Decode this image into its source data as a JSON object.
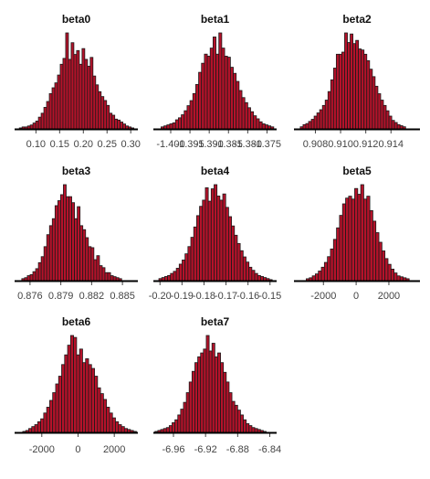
{
  "colors": {
    "bar_fill": "#b5122a",
    "bar_stroke": "#1a1a1a",
    "axis": "#000000",
    "tick_text": "#444444"
  },
  "chart_data": [
    {
      "type": "bar",
      "subtype": "histogram",
      "title": "beta0",
      "xlim": [
        0.055,
        0.315
      ],
      "ticks": [
        {
          "v": 0.1,
          "label": "0.10"
        },
        {
          "v": 0.15,
          "label": "0.15"
        },
        {
          "v": 0.2,
          "label": "0.20"
        },
        {
          "v": 0.25,
          "label": "0.25"
        },
        {
          "v": 0.3,
          "label": "0.30"
        }
      ],
      "bin_start": 0.065,
      "bin_width": 0.00575,
      "counts": [
        1,
        2,
        2,
        3,
        4,
        6,
        8,
        12,
        16,
        22,
        28,
        36,
        42,
        47,
        55,
        66,
        72,
        98,
        71,
        88,
        76,
        80,
        66,
        82,
        71,
        64,
        73,
        54,
        45,
        38,
        33,
        29,
        24,
        16,
        14,
        10,
        9,
        7,
        5,
        3,
        2,
        1
      ]
    },
    {
      "type": "bar",
      "subtype": "histogram",
      "title": "beta1",
      "xlim": [
        -1.4045,
        -1.3725
      ],
      "ticks": [
        {
          "v": -1.4,
          "label": "-1.400"
        },
        {
          "v": -1.395,
          "label": "-1.395"
        },
        {
          "v": -1.39,
          "label": "-1.390"
        },
        {
          "v": -1.385,
          "label": "-1.385"
        },
        {
          "v": -1.38,
          "label": "-1.380"
        },
        {
          "v": -1.375,
          "label": "-1.375"
        }
      ],
      "bin_start": -1.4025,
      "bin_width": 0.00075,
      "counts": [
        2,
        3,
        4,
        5,
        6,
        9,
        11,
        14,
        18,
        23,
        28,
        35,
        44,
        56,
        65,
        74,
        72,
        80,
        91,
        74,
        95,
        80,
        72,
        71,
        61,
        55,
        47,
        38,
        31,
        26,
        21,
        17,
        13,
        10,
        7,
        5,
        4,
        3,
        2
      ]
    },
    {
      "type": "bar",
      "subtype": "histogram",
      "title": "beta2",
      "xlim": [
        0.9063,
        0.9163
      ],
      "ticks": [
        {
          "v": 0.908,
          "label": "0.908"
        },
        {
          "v": 0.91,
          "label": "0.910"
        },
        {
          "v": 0.912,
          "label": "0.912"
        },
        {
          "v": 0.914,
          "label": "0.914"
        }
      ],
      "bin_start": 0.9068,
      "bin_width": 0.00022,
      "counts": [
        2,
        4,
        5,
        7,
        9,
        12,
        15,
        18,
        22,
        27,
        35,
        46,
        57,
        70,
        70,
        72,
        90,
        81,
        89,
        80,
        83,
        75,
        74,
        70,
        64,
        56,
        49,
        40,
        33,
        27,
        22,
        17,
        12,
        8,
        6,
        4,
        3,
        2
      ]
    },
    {
      "type": "bar",
      "subtype": "histogram",
      "title": "beta3",
      "xlim": [
        0.8745,
        0.8865
      ],
      "ticks": [
        {
          "v": 0.876,
          "label": "0.876"
        },
        {
          "v": 0.879,
          "label": "0.879"
        },
        {
          "v": 0.882,
          "label": "0.882"
        },
        {
          "v": 0.885,
          "label": "0.885"
        }
      ],
      "bin_start": 0.8752,
      "bin_width": 0.00027,
      "counts": [
        2,
        3,
        5,
        6,
        9,
        12,
        18,
        24,
        34,
        46,
        55,
        62,
        75,
        80,
        86,
        96,
        84,
        84,
        78,
        62,
        74,
        55,
        51,
        43,
        34,
        33,
        21,
        25,
        15,
        13,
        8,
        8,
        5,
        4,
        3,
        2
      ]
    },
    {
      "type": "bar",
      "subtype": "histogram",
      "title": "beta4",
      "xlim": [
        -0.203,
        -0.147
      ],
      "ticks": [
        {
          "v": -0.2,
          "label": "-0.20"
        },
        {
          "v": -0.19,
          "label": "-0.19"
        },
        {
          "v": -0.18,
          "label": "-0.18"
        },
        {
          "v": -0.17,
          "label": "-0.17"
        },
        {
          "v": -0.16,
          "label": "-0.16"
        },
        {
          "v": -0.15,
          "label": "-0.15"
        }
      ],
      "bin_start": -0.2005,
      "bin_width": 0.00132,
      "counts": [
        2,
        3,
        4,
        5,
        7,
        9,
        12,
        16,
        20,
        26,
        33,
        42,
        52,
        63,
        72,
        78,
        90,
        77,
        89,
        93,
        82,
        78,
        84,
        71,
        62,
        53,
        44,
        36,
        29,
        23,
        18,
        13,
        10,
        7,
        5,
        4,
        3,
        2,
        1
      ]
    },
    {
      "type": "bar",
      "subtype": "histogram",
      "title": "beta5",
      "xlim": [
        -3800,
        3900
      ],
      "ticks": [
        {
          "v": -2000,
          "label": "-2000"
        },
        {
          "v": 0,
          "label": "0"
        },
        {
          "v": 2000,
          "label": "2000"
        }
      ],
      "bin_start": -3050,
      "bin_width": 185,
      "counts": [
        2,
        3,
        5,
        7,
        10,
        14,
        19,
        25,
        33,
        43,
        55,
        68,
        80,
        86,
        88,
        85,
        96,
        90,
        100,
        85,
        88,
        73,
        62,
        50,
        40,
        31,
        23,
        17,
        12,
        8,
        5,
        4,
        3,
        2
      ]
    },
    {
      "type": "bar",
      "subtype": "histogram",
      "title": "beta6",
      "xlim": [
        -3500,
        3300
      ],
      "ticks": [
        {
          "v": -2000,
          "label": "-2000"
        },
        {
          "v": 0,
          "label": "0"
        },
        {
          "v": 2000,
          "label": "2000"
        }
      ],
      "bin_start": -3050,
      "bin_width": 165,
      "counts": [
        1,
        2,
        4,
        6,
        8,
        11,
        14,
        20,
        26,
        33,
        41,
        50,
        58,
        70,
        80,
        90,
        100,
        98,
        80,
        86,
        72,
        76,
        70,
        66,
        58,
        46,
        40,
        34,
        26,
        20,
        15,
        11,
        8,
        6,
        4,
        3,
        2,
        1
      ]
    },
    {
      "type": "bar",
      "subtype": "histogram",
      "title": "beta7",
      "xlim": [
        -6.985,
        -6.8315
      ],
      "ticks": [
        {
          "v": -6.96,
          "label": "-6.96"
        },
        {
          "v": -6.92,
          "label": "-6.92"
        },
        {
          "v": -6.88,
          "label": "-6.88"
        },
        {
          "v": -6.84,
          "label": "-6.84"
        }
      ],
      "bin_start": -6.983,
      "bin_width": 0.00355,
      "counts": [
        1,
        2,
        3,
        4,
        5,
        7,
        10,
        13,
        18,
        24,
        31,
        41,
        52,
        63,
        72,
        78,
        82,
        86,
        100,
        84,
        92,
        78,
        82,
        72,
        62,
        52,
        41,
        32,
        28,
        23,
        18,
        13,
        9,
        7,
        5,
        4,
        3,
        2,
        1
      ]
    }
  ]
}
